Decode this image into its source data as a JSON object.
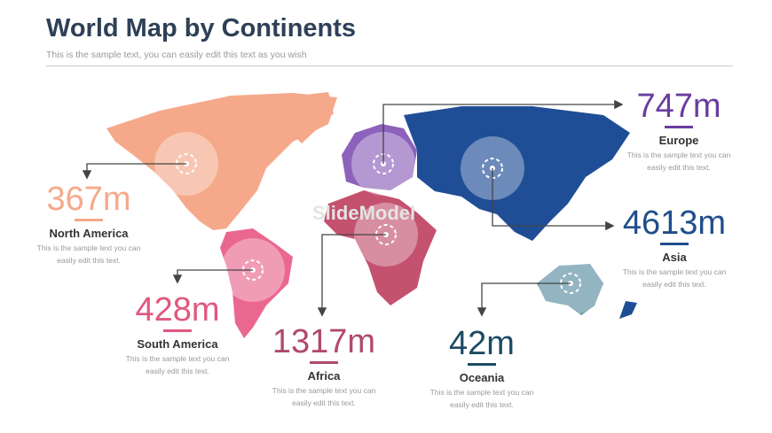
{
  "header": {
    "title": "World Map by Continents",
    "subtitle": "This is the sample text, you can easily edit this text as you wish"
  },
  "watermark": "SlideModel",
  "continents": [
    {
      "value": "747m",
      "name": "Europe",
      "text": "This is the sample text you can easily edit this text."
    },
    {
      "value": "367m",
      "name": "North America",
      "text": "This is the sample text you can easily edit this text."
    },
    {
      "value": "4613m",
      "name": "Asia",
      "text": "This is the sample text you can easily edit this text."
    },
    {
      "value": "428m",
      "name": "South America",
      "text": "This is the sample text you can easily edit this text."
    },
    {
      "value": "1317m",
      "name": "Africa",
      "text": "This is the sample text you can easily edit this text."
    },
    {
      "value": "42m",
      "name": "Oceania",
      "text": "This is the sample text you can easily edit this text."
    }
  ]
}
